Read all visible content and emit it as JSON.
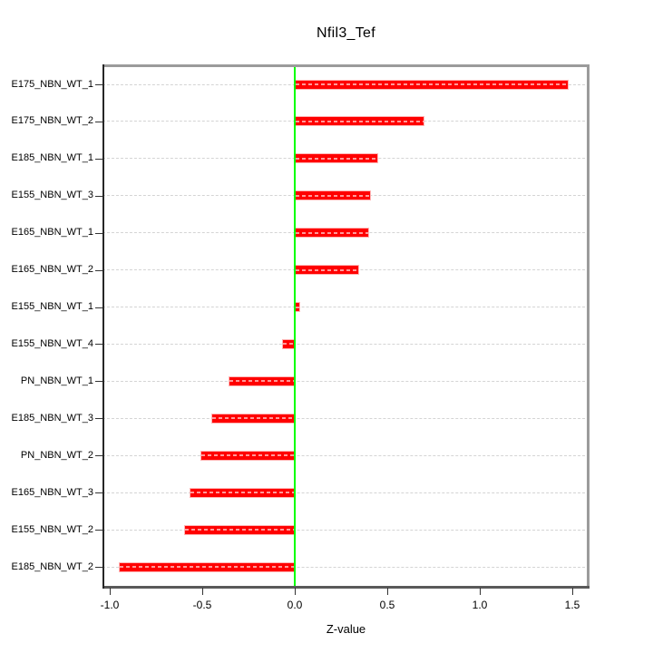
{
  "figure": {
    "background": "#ffffff"
  },
  "chart_data": {
    "type": "bar",
    "orientation": "horizontal",
    "title": "Nfil3_Tef",
    "xlabel": "Z-value",
    "ylabel": "",
    "categories": [
      "E175_NBN_WT_1",
      "E175_NBN_WT_2",
      "E185_NBN_WT_1",
      "E155_NBN_WT_3",
      "E165_NBN_WT_1",
      "E165_NBN_WT_2",
      "E155_NBN_WT_1",
      "E155_NBN_WT_4",
      "PN_NBN_WT_1",
      "E185_NBN_WT_3",
      "PN_NBN_WT_2",
      "E165_NBN_WT_3",
      "E155_NBN_WT_2",
      "E185_NBN_WT_2"
    ],
    "values": [
      1.48,
      0.7,
      0.45,
      0.41,
      0.4,
      0.35,
      0.03,
      -0.07,
      -0.36,
      -0.45,
      -0.51,
      -0.57,
      -0.6,
      -0.95
    ],
    "xlim": [
      -1.04,
      1.59
    ],
    "xticks": [
      -1.0,
      -0.5,
      0.0,
      0.5,
      1.0,
      1.5
    ],
    "xtick_labels": [
      "-1.0",
      "-0.5",
      "0.0",
      "0.5",
      "1.0",
      "1.5"
    ],
    "grid": "horizontal-dashed",
    "legend": "none",
    "zero_reference_line": 0.0,
    "colors": {
      "bar": "#ff0000",
      "bar_edge": "#ffb3b3",
      "zero_line": "#00ff00",
      "gridline": "#d4d4d4",
      "box_light": "#9b9b9b",
      "box_dark": "#595959",
      "box_left": "#262626",
      "tick": "#333333",
      "text": "#000000"
    }
  }
}
